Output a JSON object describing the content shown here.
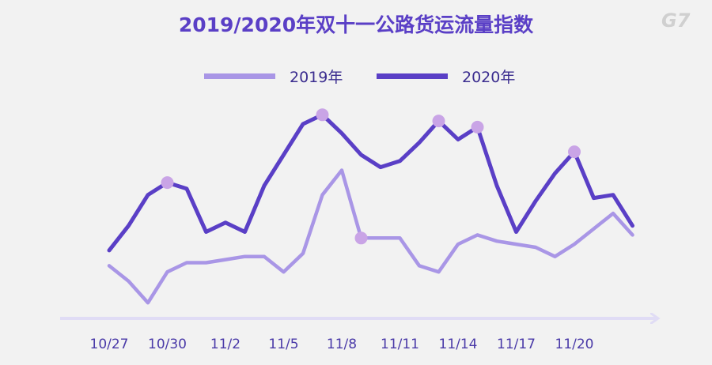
{
  "title": "2019/2020年双十一公路货运流量指数",
  "logo": "G7",
  "legend": [
    {
      "name": "2019年",
      "color": "#a996e6"
    },
    {
      "name": "2020年",
      "color": "#5a3fc6"
    }
  ],
  "colors": {
    "marker": "#c9a4e6",
    "axis": "#e0dcf5",
    "background": "#f2f2f2"
  },
  "chart_data": {
    "type": "line",
    "title": "2019/2020年双十一公路货运流量指数",
    "x_tick_labels": [
      "10/27",
      "10/30",
      "11/2",
      "11/5",
      "11/8",
      "11/11",
      "11/14",
      "11/17",
      "11/20"
    ],
    "x_tick_index": [
      0,
      3,
      6,
      9,
      12,
      15,
      18,
      21,
      24
    ],
    "x_count": 28,
    "ylim": [
      0,
      100
    ],
    "y_axis_shown": false,
    "grid": false,
    "legend_position": "top-center",
    "series": [
      {
        "name": "2019年",
        "values": [
          24,
          19,
          12,
          22,
          25,
          25,
          26,
          27,
          27,
          22,
          28,
          47,
          55,
          33,
          33,
          33,
          24,
          22,
          31,
          34,
          32,
          31,
          30,
          27,
          31,
          36,
          41,
          34
        ],
        "highlight_index": [
          13
        ]
      },
      {
        "name": "2020年",
        "values": [
          29,
          37,
          47,
          51,
          49,
          35,
          38,
          35,
          50,
          60,
          70,
          73,
          67,
          60,
          56,
          58,
          64,
          71,
          65,
          69,
          50,
          35,
          45,
          54,
          61,
          46,
          47,
          37
        ],
        "highlight_index": [
          3,
          11,
          17,
          19,
          24
        ]
      }
    ]
  }
}
